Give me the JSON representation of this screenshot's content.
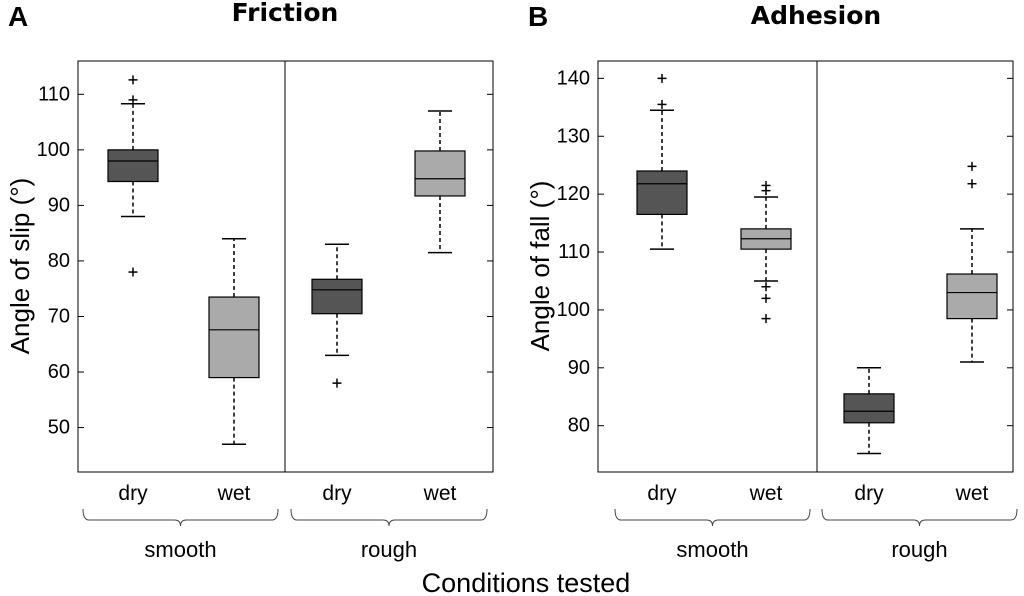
{
  "figure": {
    "xlabel": "Conditions tested"
  },
  "chart_data": [
    {
      "type": "box",
      "panel": "A",
      "title": "Friction",
      "ylabel": "Angle of slip (°)",
      "ylim": [
        42,
        116
      ],
      "yticks": [
        50,
        60,
        70,
        80,
        90,
        100,
        110
      ],
      "categories": [
        "dry",
        "wet",
        "dry",
        "wet"
      ],
      "groups": [
        {
          "label": "smooth",
          "categories": [
            0,
            1
          ]
        },
        {
          "label": "rough",
          "categories": [
            2,
            3
          ]
        }
      ],
      "boxes": [
        {
          "category": "dry",
          "group": "smooth",
          "shade": "dark",
          "whisker_low": 88,
          "q1": 94.3,
          "median": 98,
          "q3": 100,
          "whisker_high": 108.3,
          "outliers": [
            78,
            109,
            112.6
          ]
        },
        {
          "category": "wet",
          "group": "smooth",
          "shade": "light",
          "whisker_low": 47,
          "q1": 59,
          "median": 67.6,
          "q3": 73.5,
          "whisker_high": 84,
          "outliers": []
        },
        {
          "category": "dry",
          "group": "rough",
          "shade": "dark",
          "whisker_low": 63,
          "q1": 70.5,
          "median": 74.8,
          "q3": 76.7,
          "whisker_high": 83,
          "outliers": [
            58
          ]
        },
        {
          "category": "wet",
          "group": "rough",
          "shade": "light",
          "whisker_low": 81.5,
          "q1": 91.7,
          "median": 94.8,
          "q3": 99.8,
          "whisker_high": 107,
          "outliers": []
        }
      ]
    },
    {
      "type": "box",
      "panel": "B",
      "title": "Adhesion",
      "ylabel": "Angle of fall (°)",
      "ylim": [
        72,
        143
      ],
      "yticks": [
        80,
        90,
        100,
        110,
        120,
        130,
        140
      ],
      "categories": [
        "dry",
        "wet",
        "dry",
        "wet"
      ],
      "groups": [
        {
          "label": "smooth",
          "categories": [
            0,
            1
          ]
        },
        {
          "label": "rough",
          "categories": [
            2,
            3
          ]
        }
      ],
      "boxes": [
        {
          "category": "dry",
          "group": "smooth",
          "shade": "dark",
          "whisker_low": 110.5,
          "q1": 116.5,
          "median": 121.8,
          "q3": 124,
          "whisker_high": 134.5,
          "outliers": [
            135.5,
            140
          ]
        },
        {
          "category": "wet",
          "group": "smooth",
          "shade": "light",
          "whisker_low": 105,
          "q1": 110.5,
          "median": 112.3,
          "q3": 114,
          "whisker_high": 119.5,
          "outliers": [
            98.5,
            102,
            104,
            120.6,
            121.5
          ]
        },
        {
          "category": "dry",
          "group": "rough",
          "shade": "dark",
          "whisker_low": 75.2,
          "q1": 80.5,
          "median": 82.5,
          "q3": 85.5,
          "whisker_high": 90,
          "outliers": []
        },
        {
          "category": "wet",
          "group": "rough",
          "shade": "light",
          "whisker_low": 91,
          "q1": 98.5,
          "median": 103,
          "q3": 106.2,
          "whisker_high": 114,
          "outliers": [
            121.8,
            124.8
          ]
        }
      ]
    }
  ],
  "colors": {
    "dark": "#555555",
    "light": "#aaaaaa",
    "line": "#000000",
    "frame": "#000000"
  }
}
